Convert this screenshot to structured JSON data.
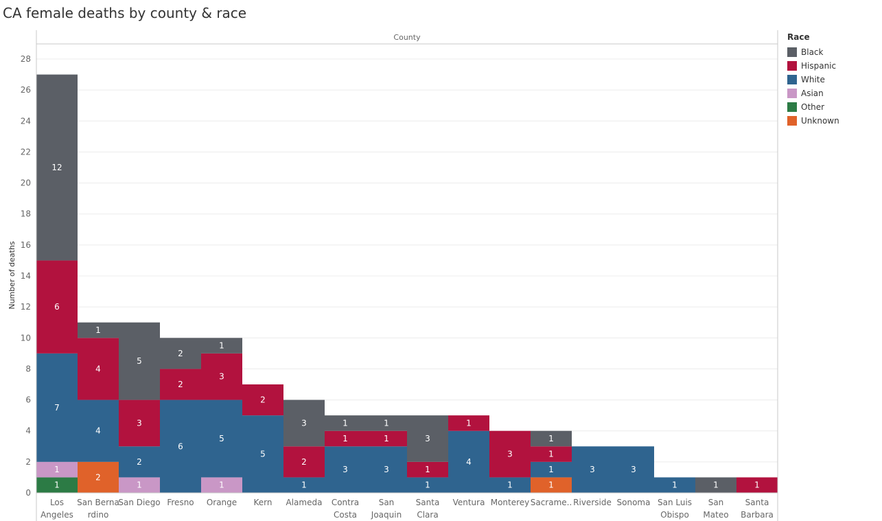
{
  "title": "CA female deaths by county & race",
  "legend": {
    "title": "Race",
    "items": [
      {
        "label": "Black",
        "color": "#5b5f66"
      },
      {
        "label": "Hispanic",
        "color": "#b2123e"
      },
      {
        "label": "White",
        "color": "#2f648f"
      },
      {
        "label": "Asian",
        "color": "#c997c6"
      },
      {
        "label": "Other",
        "color": "#2c7b45"
      },
      {
        "label": "Unknown",
        "color": "#e0622a"
      }
    ]
  },
  "chart_data": {
    "type": "bar",
    "stacked": true,
    "title": "CA female deaths by county & race",
    "xlabel": "County",
    "ylabel": "Number of deaths",
    "ylim": [
      0,
      28
    ],
    "yticks": [
      0,
      2,
      4,
      6,
      8,
      10,
      12,
      14,
      16,
      18,
      20,
      22,
      24,
      26,
      28
    ],
    "grid": true,
    "legend_position": "right",
    "categories": [
      [
        "Los",
        "Angeles"
      ],
      [
        "San Berna",
        "rdino"
      ],
      [
        "San Diego"
      ],
      [
        "Fresno"
      ],
      [
        "Orange"
      ],
      [
        "Kern"
      ],
      [
        "Alameda"
      ],
      [
        "Contra",
        "Costa"
      ],
      [
        "San",
        "Joaquin"
      ],
      [
        "Santa",
        "Clara"
      ],
      [
        "Ventura"
      ],
      [
        "Monterey"
      ],
      [
        "Sacrame.."
      ],
      [
        "Riverside"
      ],
      [
        "Sonoma"
      ],
      [
        "San Luis",
        "Obispo"
      ],
      [
        "San",
        "Mateo"
      ],
      [
        "Santa",
        "Barbara"
      ]
    ],
    "stack_order": [
      "Other",
      "Unknown",
      "Asian",
      "White",
      "Hispanic",
      "Black"
    ],
    "bars": [
      {
        "Other": 1,
        "Asian": 1,
        "White": 7,
        "Hispanic": 6,
        "Black": 12
      },
      {
        "Unknown": 2,
        "White": 4,
        "Hispanic": 4,
        "Black": 1
      },
      {
        "Asian": 1,
        "White": 2,
        "Hispanic": 3,
        "Black": 5
      },
      {
        "White": 6,
        "Hispanic": 2,
        "Black": 2
      },
      {
        "Asian": 1,
        "White": 5,
        "Hispanic": 3,
        "Black": 1
      },
      {
        "White": 5,
        "Hispanic": 2
      },
      {
        "White": 1,
        "Hispanic": 2,
        "Black": 3
      },
      {
        "White": 3,
        "Hispanic": 1,
        "Black": 1
      },
      {
        "White": 3,
        "Hispanic": 1,
        "Black": 1
      },
      {
        "White": 1,
        "Hispanic": 1,
        "Black": 3
      },
      {
        "White": 4,
        "Hispanic": 1
      },
      {
        "White": 1,
        "Hispanic": 3
      },
      {
        "Unknown": 1,
        "White": 1,
        "Hispanic": 1,
        "Black": 1
      },
      {
        "White": 3
      },
      {
        "White": 3
      },
      {
        "White": 1
      },
      {
        "Black": 1
      },
      {
        "Hispanic": 1
      }
    ]
  }
}
